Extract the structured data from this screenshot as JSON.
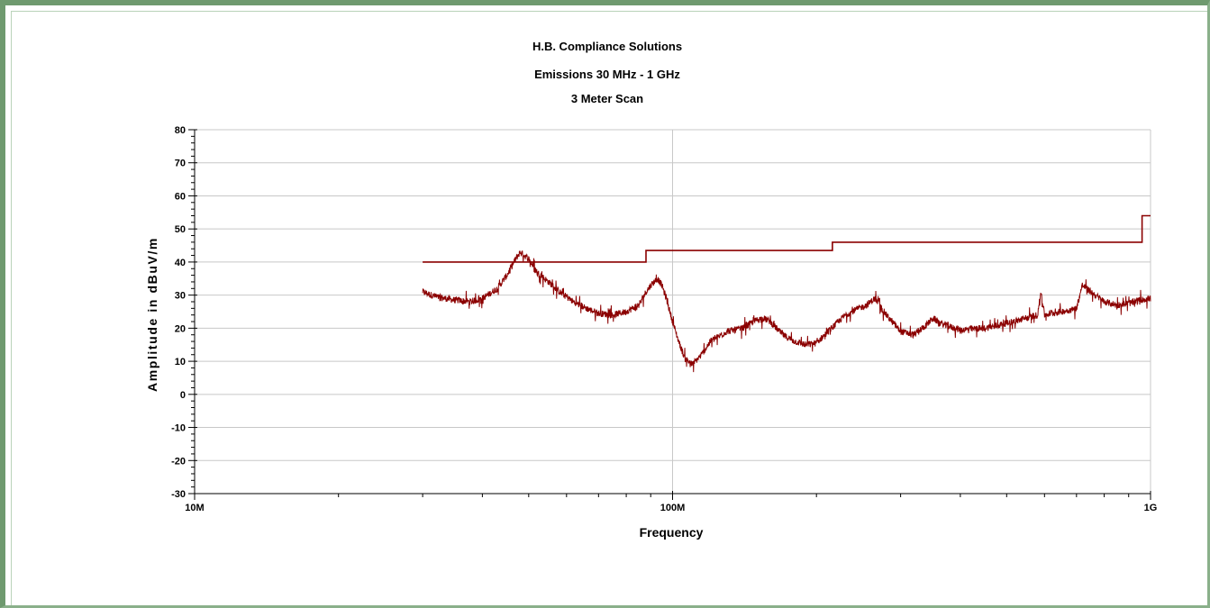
{
  "chart_data": {
    "type": "line",
    "title": "H.B. Compliance Solutions",
    "subtitle": "Emissions 30 MHz - 1 GHz",
    "subtitle2": "3 Meter Scan",
    "xlabel": "Frequency",
    "ylabel": "Amplitude in dBuV/m",
    "x_scale": "log",
    "xlim": [
      10000000,
      1000000000
    ],
    "ylim": [
      -30,
      80
    ],
    "x_tick_labels": [
      {
        "value": 10000000,
        "label": "10M"
      },
      {
        "value": 100000000,
        "label": "100M"
      },
      {
        "value": 1000000000,
        "label": "1G"
      }
    ],
    "y_ticks": [
      -30,
      -20,
      -10,
      0,
      10,
      20,
      30,
      40,
      50,
      60,
      70,
      80
    ],
    "grid": true,
    "series": [
      {
        "color": "#8b0000",
        "style": "step",
        "x": [
          30000000,
          88000000,
          88000000,
          216000000,
          216000000,
          960000000,
          960000000,
          1000000000
        ],
        "values": [
          40,
          40,
          43.5,
          43.5,
          46,
          46,
          54,
          54
        ]
      },
      {
        "color": "#8b0000",
        "style": "noisy",
        "x": [
          30000000,
          32000000,
          35000000,
          38000000,
          40000000,
          43000000,
          45000000,
          47000000,
          48000000,
          50000000,
          52000000,
          55000000,
          58000000,
          62000000,
          66000000,
          70000000,
          75000000,
          80000000,
          85000000,
          88000000,
          90000000,
          93000000,
          95000000,
          97000000,
          100000000,
          103000000,
          106000000,
          110000000,
          115000000,
          120000000,
          130000000,
          140000000,
          150000000,
          155000000,
          160000000,
          170000000,
          180000000,
          190000000,
          200000000,
          215000000,
          230000000,
          245000000,
          255000000,
          265000000,
          280000000,
          300000000,
          320000000,
          340000000,
          350000000,
          370000000,
          400000000,
          450000000,
          500000000,
          550000000,
          580000000,
          590000000,
          600000000,
          620000000,
          650000000,
          680000000,
          700000000,
          720000000,
          750000000,
          800000000,
          850000000,
          900000000,
          950000000,
          1000000000
        ],
        "values": [
          31,
          29.5,
          28.5,
          28,
          29,
          32,
          36,
          41,
          43,
          41,
          37,
          34,
          31,
          28,
          26,
          24.5,
          24,
          25,
          27,
          31,
          33,
          35,
          33,
          29,
          22,
          16,
          11,
          9,
          12,
          16,
          19,
          20,
          22.5,
          23,
          22,
          18,
          16,
          15,
          15.5,
          20,
          24,
          26,
          27,
          29,
          24,
          19,
          18,
          21,
          23,
          21,
          19.5,
          20,
          21.5,
          23,
          24,
          31,
          24,
          24.5,
          25,
          25.5,
          26,
          33,
          31,
          28,
          27,
          27.5,
          28.5,
          29
        ]
      }
    ]
  }
}
